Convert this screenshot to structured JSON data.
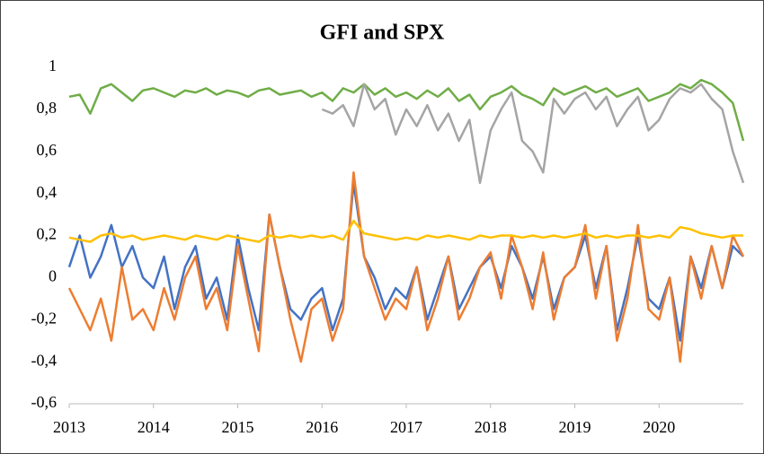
{
  "chart_data": {
    "type": "line",
    "title": "GFI and SPX",
    "x": [
      2013,
      2013.125,
      2013.25,
      2013.375,
      2013.5,
      2013.625,
      2013.75,
      2013.875,
      2014,
      2014.125,
      2014.25,
      2014.375,
      2014.5,
      2014.625,
      2014.75,
      2014.875,
      2015,
      2015.125,
      2015.25,
      2015.375,
      2015.5,
      2015.625,
      2015.75,
      2015.875,
      2016,
      2016.125,
      2016.25,
      2016.375,
      2016.5,
      2016.625,
      2016.75,
      2016.875,
      2017,
      2017.125,
      2017.25,
      2017.375,
      2017.5,
      2017.625,
      2017.75,
      2017.875,
      2018,
      2018.125,
      2018.25,
      2018.375,
      2018.5,
      2018.625,
      2018.75,
      2018.875,
      2019,
      2019.125,
      2019.25,
      2019.375,
      2019.5,
      2019.625,
      2019.75,
      2019.875,
      2020,
      2020.125,
      2020.25,
      2020.375,
      2020.5,
      2020.625,
      2020.75,
      2020.875,
      2021
    ],
    "series": [
      {
        "color": "#70ad47",
        "values": [
          0.86,
          0.87,
          0.78,
          0.9,
          0.92,
          0.88,
          0.84,
          0.89,
          0.9,
          0.88,
          0.86,
          0.89,
          0.88,
          0.9,
          0.87,
          0.89,
          0.88,
          0.86,
          0.89,
          0.9,
          0.87,
          0.88,
          0.89,
          0.86,
          0.88,
          0.84,
          0.9,
          0.88,
          0.92,
          0.87,
          0.9,
          0.86,
          0.88,
          0.85,
          0.89,
          0.86,
          0.9,
          0.84,
          0.87,
          0.8,
          0.86,
          0.88,
          0.91,
          0.87,
          0.85,
          0.82,
          0.9,
          0.87,
          0.89,
          0.91,
          0.88,
          0.9,
          0.86,
          0.88,
          0.9,
          0.84,
          0.86,
          0.88,
          0.92,
          0.9,
          0.94,
          0.92,
          0.88,
          0.83,
          0.65
        ]
      },
      {
        "color": "#a5a5a5",
        "values": [
          null,
          null,
          null,
          null,
          null,
          null,
          null,
          null,
          null,
          null,
          null,
          null,
          null,
          null,
          null,
          null,
          null,
          null,
          null,
          null,
          null,
          null,
          null,
          null,
          0.8,
          0.78,
          0.82,
          0.72,
          0.92,
          0.8,
          0.85,
          0.68,
          0.8,
          0.72,
          0.82,
          0.7,
          0.78,
          0.65,
          0.75,
          0.45,
          0.7,
          0.8,
          0.88,
          0.65,
          0.6,
          0.5,
          0.85,
          0.78,
          0.85,
          0.88,
          0.8,
          0.86,
          0.72,
          0.8,
          0.86,
          0.7,
          0.75,
          0.85,
          0.9,
          0.88,
          0.92,
          0.85,
          0.8,
          0.6,
          0.45
        ]
      },
      {
        "color": "#4472c4",
        "values": [
          0.05,
          0.2,
          0,
          0.1,
          0.25,
          0.05,
          0.15,
          0,
          -0.05,
          0.1,
          -0.15,
          0.05,
          0.15,
          -0.1,
          0,
          -0.2,
          0.2,
          -0.05,
          -0.25,
          0.3,
          0.05,
          -0.15,
          -0.2,
          -0.1,
          -0.05,
          -0.25,
          -0.1,
          0.45,
          0.1,
          0,
          -0.15,
          -0.05,
          -0.1,
          0.05,
          -0.2,
          -0.05,
          0.1,
          -0.15,
          -0.05,
          0.05,
          0.1,
          -0.05,
          0.15,
          0.05,
          -0.1,
          0.1,
          -0.15,
          0,
          0.05,
          0.2,
          -0.05,
          0.15,
          -0.25,
          -0.05,
          0.2,
          -0.1,
          -0.15,
          0,
          -0.3,
          0.1,
          -0.05,
          0.15,
          -0.05,
          0.15,
          0.1
        ]
      },
      {
        "color": "#ed7d31",
        "values": [
          -0.05,
          -0.15,
          -0.25,
          -0.1,
          -0.3,
          0.05,
          -0.2,
          -0.15,
          -0.25,
          -0.05,
          -0.2,
          0,
          0.1,
          -0.15,
          -0.05,
          -0.25,
          0.15,
          -0.1,
          -0.35,
          0.3,
          0.05,
          -0.2,
          -0.4,
          -0.15,
          -0.1,
          -0.3,
          -0.15,
          0.5,
          0.1,
          -0.05,
          -0.2,
          -0.1,
          -0.15,
          0.05,
          -0.25,
          -0.1,
          0.1,
          -0.2,
          -0.1,
          0.05,
          0.12,
          -0.1,
          0.2,
          0.05,
          -0.15,
          0.12,
          -0.2,
          0,
          0.05,
          0.25,
          -0.1,
          0.15,
          -0.3,
          -0.1,
          0.25,
          -0.15,
          -0.2,
          0,
          -0.4,
          0.1,
          -0.1,
          0.15,
          -0.05,
          0.2,
          0.1
        ]
      },
      {
        "color": "#ffc000",
        "values": [
          0.19,
          0.18,
          0.17,
          0.2,
          0.21,
          0.19,
          0.2,
          0.18,
          0.19,
          0.2,
          0.19,
          0.18,
          0.2,
          0.19,
          0.18,
          0.2,
          0.19,
          0.18,
          0.17,
          0.2,
          0.19,
          0.2,
          0.19,
          0.2,
          0.19,
          0.2,
          0.18,
          0.27,
          0.21,
          0.2,
          0.19,
          0.18,
          0.19,
          0.18,
          0.2,
          0.19,
          0.2,
          0.19,
          0.18,
          0.2,
          0.19,
          0.2,
          0.2,
          0.19,
          0.2,
          0.19,
          0.2,
          0.19,
          0.2,
          0.21,
          0.19,
          0.2,
          0.19,
          0.2,
          0.2,
          0.19,
          0.2,
          0.19,
          0.24,
          0.23,
          0.21,
          0.2,
          0.19,
          0.2,
          0.2
        ]
      }
    ],
    "xlim": [
      2013,
      2021
    ],
    "xticks": [
      2013,
      2014,
      2015,
      2016,
      2017,
      2018,
      2019,
      2020
    ],
    "ylim": [
      -0.6,
      1
    ],
    "yticks": [
      {
        "value": -0.6,
        "label": "-0,6"
      },
      {
        "value": -0.4,
        "label": "-0,4"
      },
      {
        "value": -0.2,
        "label": "-0,2"
      },
      0,
      {
        "value": 0.2,
        "label": "0,2"
      },
      {
        "value": 0.4,
        "label": "0,4"
      },
      {
        "value": 0.6,
        "label": "0,6"
      },
      {
        "value": 0.8,
        "label": "0,8"
      },
      1
    ],
    "grid": false
  }
}
